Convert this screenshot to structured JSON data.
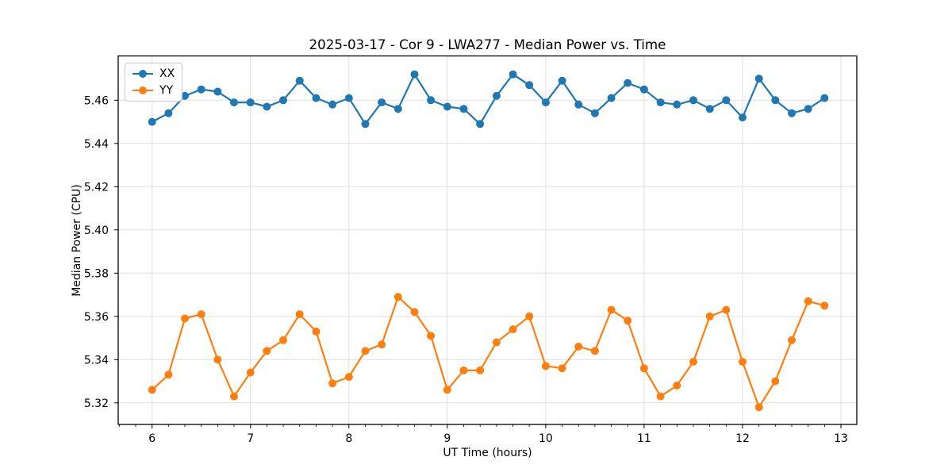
{
  "figure": {
    "title": "2025-03-17 - Cor 9 - LWA277 - Median Power vs. Time",
    "xlabel": "UT Time (hours)",
    "ylabel": "Median Power (CPU)"
  },
  "legend": {
    "items": [
      {
        "label": "XX",
        "color": "#1f77b4"
      },
      {
        "label": "YY",
        "color": "#ff7f0e"
      }
    ]
  },
  "colors": {
    "background": "#ffffff",
    "grid": "#e0e0e0",
    "spine": "#000000",
    "series_xx": "#1f77b4",
    "series_yy": "#ff7f0e"
  },
  "chart_data": {
    "type": "line",
    "title": "2025-03-17 - Cor 9 - LWA277 - Median Power vs. Time",
    "xlabel": "UT Time (hours)",
    "ylabel": "Median Power (CPU)",
    "xlim": [
      5.656,
      13.161
    ],
    "ylim": [
      5.31,
      5.4805
    ],
    "xticks": [
      6,
      7,
      8,
      9,
      10,
      11,
      12,
      13
    ],
    "yticks": [
      5.32,
      5.34,
      5.36,
      5.38,
      5.4,
      5.42,
      5.44,
      5.46
    ],
    "x_minor_tick_interval": 0.16667,
    "grid": true,
    "legend_position": "upper left",
    "marker": "o",
    "x": [
      6.0,
      6.167,
      6.333,
      6.5,
      6.667,
      6.833,
      7.0,
      7.167,
      7.333,
      7.5,
      7.667,
      7.833,
      8.0,
      8.167,
      8.333,
      8.5,
      8.667,
      8.833,
      9.0,
      9.167,
      9.333,
      9.5,
      9.667,
      9.833,
      10.0,
      10.167,
      10.333,
      10.5,
      10.667,
      10.833,
      11.0,
      11.167,
      11.333,
      11.5,
      11.667,
      11.833,
      12.0,
      12.167,
      12.333,
      12.5,
      12.667,
      12.833
    ],
    "series": [
      {
        "name": "XX",
        "color": "#1f77b4",
        "values": [
          5.45,
          5.454,
          5.462,
          5.465,
          5.464,
          5.459,
          5.459,
          5.457,
          5.46,
          5.469,
          5.461,
          5.458,
          5.461,
          5.449,
          5.459,
          5.456,
          5.472,
          5.46,
          5.457,
          5.456,
          5.449,
          5.462,
          5.472,
          5.467,
          5.459,
          5.469,
          5.458,
          5.454,
          5.461,
          5.468,
          5.465,
          5.459,
          5.458,
          5.46,
          5.456,
          5.46,
          5.452,
          5.47,
          5.46,
          5.454,
          5.456,
          5.461
        ]
      },
      {
        "name": "YY",
        "color": "#ff7f0e",
        "values": [
          5.326,
          5.333,
          5.359,
          5.361,
          5.34,
          5.323,
          5.334,
          5.344,
          5.349,
          5.361,
          5.353,
          5.329,
          5.332,
          5.344,
          5.347,
          5.369,
          5.362,
          5.351,
          5.326,
          5.335,
          5.335,
          5.348,
          5.354,
          5.36,
          5.337,
          5.336,
          5.346,
          5.344,
          5.363,
          5.358,
          5.336,
          5.323,
          5.328,
          5.339,
          5.36,
          5.363,
          5.339,
          5.318,
          5.33,
          5.349,
          5.367,
          5.365
        ]
      }
    ]
  }
}
